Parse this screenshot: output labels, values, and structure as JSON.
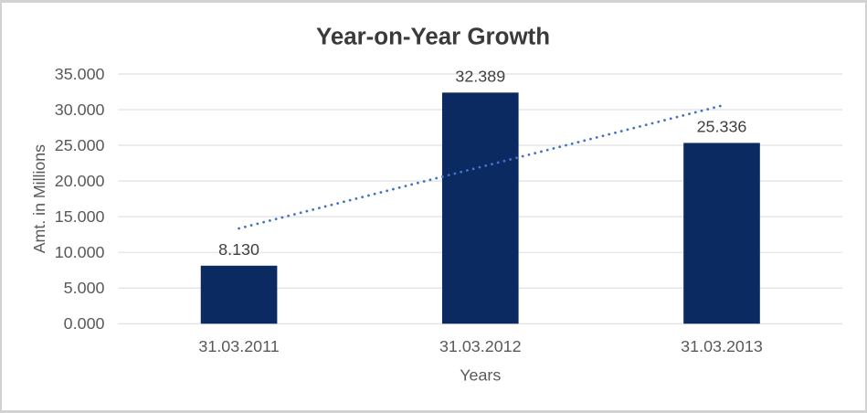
{
  "chart_data": {
    "type": "bar",
    "title": "Year-on-Year Growth",
    "xlabel": "Years",
    "ylabel": "Amt. in Millions",
    "categories": [
      "31.03.2011",
      "31.03.2012",
      "31.03.2013"
    ],
    "values": [
      8.13,
      32.389,
      25.336
    ],
    "value_labels": [
      "8.130",
      "32.389",
      "25.336"
    ],
    "y_ticks": [
      {
        "value": 35,
        "label": "35.000"
      },
      {
        "value": 30,
        "label": "30.000"
      },
      {
        "value": 25,
        "label": "25.000"
      },
      {
        "value": 20,
        "label": "20.000"
      },
      {
        "value": 15,
        "label": "15.000"
      },
      {
        "value": 10,
        "label": "10.000"
      },
      {
        "value": 5,
        "label": "5.000"
      },
      {
        "value": 0,
        "label": "0.000"
      }
    ],
    "ylim": [
      0,
      35
    ],
    "grid": true,
    "legend": "none",
    "trendline": {
      "type": "linear",
      "style": "dotted",
      "start_value": 13.349,
      "end_value": 30.555
    },
    "colors": {
      "bar": "#0c2a62",
      "trendline": "#4472c4",
      "gridline": "#d9d9d9",
      "axis_line": "#d9d9d9",
      "title_text": "#3a3a3a",
      "axis_text": "#595959",
      "data_label_text": "#404040",
      "frame_border": "#d2d2d2",
      "background": "#ffffff"
    }
  }
}
